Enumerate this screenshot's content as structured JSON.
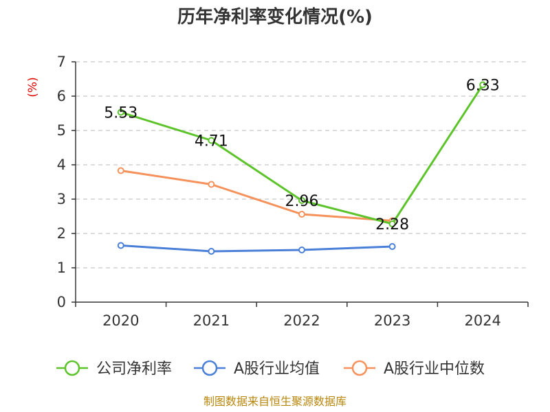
{
  "chart_data": {
    "type": "line",
    "title": "历年净利率变化情况(%)",
    "ylabel": "(%)",
    "categories": [
      "2020",
      "2021",
      "2022",
      "2023",
      "2024"
    ],
    "ylim": [
      0,
      7
    ],
    "yticks": [
      0,
      1,
      2,
      3,
      4,
      5,
      6,
      7
    ],
    "grid": true,
    "legend_position": "bottom",
    "series": [
      {
        "name": "公司净利率",
        "color": "#5cc42a",
        "values": [
          5.53,
          4.71,
          2.96,
          2.28,
          6.33
        ],
        "labels": [
          "5.53",
          "4.71",
          "2.96",
          "2.28",
          "6.33"
        ]
      },
      {
        "name": "A股行业均值",
        "color": "#4a7fd8",
        "values": [
          1.65,
          1.48,
          1.52,
          1.62,
          null
        ]
      },
      {
        "name": "A股行业中位数",
        "color": "#f5915a",
        "values": [
          3.83,
          3.43,
          2.56,
          2.37,
          null
        ]
      }
    ]
  },
  "footer": {
    "source": "制图数据来自恒生聚源数据库"
  }
}
